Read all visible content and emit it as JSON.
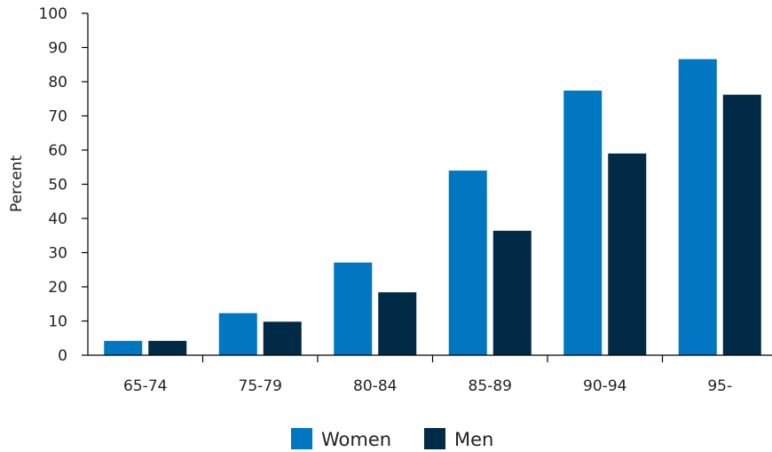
{
  "chart_data": {
    "type": "bar",
    "categories": [
      "65-74",
      "75-79",
      "80-84",
      "85-89",
      "90-94",
      "95-"
    ],
    "series": [
      {
        "name": "Women",
        "color": "#0077c0",
        "values": [
          4.2,
          12.3,
          27.1,
          54.0,
          77.4,
          86.6
        ]
      },
      {
        "name": "Men",
        "color": "#002a46",
        "values": [
          4.2,
          9.8,
          18.4,
          36.4,
          59.0,
          76.2
        ]
      }
    ],
    "ylabel": "Percent",
    "xlabel": "",
    "ylim": [
      0,
      100
    ],
    "yticks": [
      "0",
      "10",
      "20",
      "30",
      "40",
      "50",
      "60",
      "70",
      "80",
      "90",
      "100"
    ],
    "grid": false,
    "legend_position": "bottom-center"
  }
}
